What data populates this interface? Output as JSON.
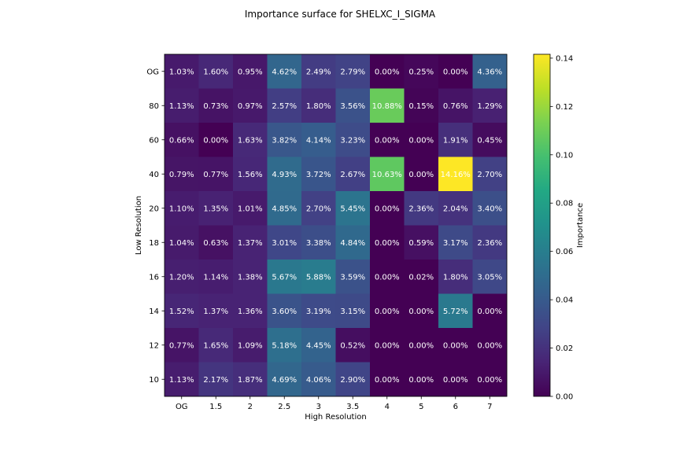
{
  "chart_data": {
    "type": "heatmap",
    "title": "Importance surface for SHELXC_I_SIGMA",
    "xlabel": "High Resolution",
    "ylabel": "Low Resolution",
    "colorbar_label": "Importance",
    "x_categories": [
      "OG",
      "1.5",
      "2",
      "2.5",
      "3",
      "3.5",
      "4",
      "5",
      "6",
      "7"
    ],
    "y_categories": [
      "OG",
      "80",
      "60",
      "40",
      "20",
      "18",
      "16",
      "14",
      "12",
      "10"
    ],
    "values": [
      [
        0.0103,
        0.016,
        0.0095,
        0.0462,
        0.0249,
        0.0279,
        0.0,
        0.0025,
        0.0,
        0.0436
      ],
      [
        0.0113,
        0.0073,
        0.0097,
        0.0257,
        0.018,
        0.0356,
        0.1088,
        0.0015,
        0.0076,
        0.0129
      ],
      [
        0.0066,
        0.0,
        0.0163,
        0.0382,
        0.0414,
        0.0323,
        0.0,
        0.0,
        0.0191,
        0.0045
      ],
      [
        0.0079,
        0.0077,
        0.0156,
        0.0493,
        0.0372,
        0.0267,
        0.1063,
        0.0,
        0.1416,
        0.027
      ],
      [
        0.011,
        0.0135,
        0.0101,
        0.0485,
        0.027,
        0.0545,
        0.0,
        0.0236,
        0.0204,
        0.034
      ],
      [
        0.0104,
        0.0063,
        0.0137,
        0.0301,
        0.0338,
        0.0484,
        0.0,
        0.0059,
        0.0317,
        0.0236
      ],
      [
        0.012,
        0.0114,
        0.0138,
        0.0567,
        0.0588,
        0.0359,
        0.0,
        0.0002,
        0.018,
        0.0305
      ],
      [
        0.0152,
        0.0137,
        0.0136,
        0.036,
        0.0319,
        0.0315,
        0.0,
        0.0,
        0.0572,
        0.0
      ],
      [
        0.0077,
        0.0165,
        0.0109,
        0.0518,
        0.0445,
        0.0052,
        0.0,
        0.0,
        0.0,
        0.0
      ],
      [
        0.0113,
        0.0217,
        0.0187,
        0.0469,
        0.0406,
        0.029,
        0.0,
        0.0,
        0.0,
        0.0
      ]
    ],
    "cell_labels": [
      [
        "1.03%",
        "1.60%",
        "0.95%",
        "4.62%",
        "2.49%",
        "2.79%",
        "0.00%",
        "0.25%",
        "0.00%",
        "4.36%"
      ],
      [
        "1.13%",
        "0.73%",
        "0.97%",
        "2.57%",
        "1.80%",
        "3.56%",
        "10.88%",
        "0.15%",
        "0.76%",
        "1.29%"
      ],
      [
        "0.66%",
        "0.00%",
        "1.63%",
        "3.82%",
        "4.14%",
        "3.23%",
        "0.00%",
        "0.00%",
        "1.91%",
        "0.45%"
      ],
      [
        "0.79%",
        "0.77%",
        "1.56%",
        "4.93%",
        "3.72%",
        "2.67%",
        "10.63%",
        "0.00%",
        "14.16%",
        "2.70%"
      ],
      [
        "1.10%",
        "1.35%",
        "1.01%",
        "4.85%",
        "2.70%",
        "5.45%",
        "0.00%",
        "2.36%",
        "2.04%",
        "3.40%"
      ],
      [
        "1.04%",
        "0.63%",
        "1.37%",
        "3.01%",
        "3.38%",
        "4.84%",
        "0.00%",
        "0.59%",
        "3.17%",
        "2.36%"
      ],
      [
        "1.20%",
        "1.14%",
        "1.38%",
        "5.67%",
        "5.88%",
        "3.59%",
        "0.00%",
        "0.02%",
        "1.80%",
        "3.05%"
      ],
      [
        "1.52%",
        "1.37%",
        "1.36%",
        "3.60%",
        "3.19%",
        "3.15%",
        "0.00%",
        "0.00%",
        "5.72%",
        "0.00%"
      ],
      [
        "0.77%",
        "1.65%",
        "1.09%",
        "5.18%",
        "4.45%",
        "0.52%",
        "0.00%",
        "0.00%",
        "0.00%",
        "0.00%"
      ],
      [
        "1.13%",
        "2.17%",
        "1.87%",
        "4.69%",
        "4.06%",
        "2.90%",
        "0.00%",
        "0.00%",
        "0.00%",
        "0.00%"
      ]
    ],
    "vmin": 0,
    "vmax": 0.1416,
    "colormap": "viridis",
    "colorbar_ticks": [
      "0.00",
      "0.02",
      "0.04",
      "0.06",
      "0.08",
      "0.10",
      "0.12",
      "0.14"
    ],
    "colorbar_tick_values": [
      0,
      0.02,
      0.04,
      0.06,
      0.08,
      0.1,
      0.12,
      0.14
    ]
  }
}
